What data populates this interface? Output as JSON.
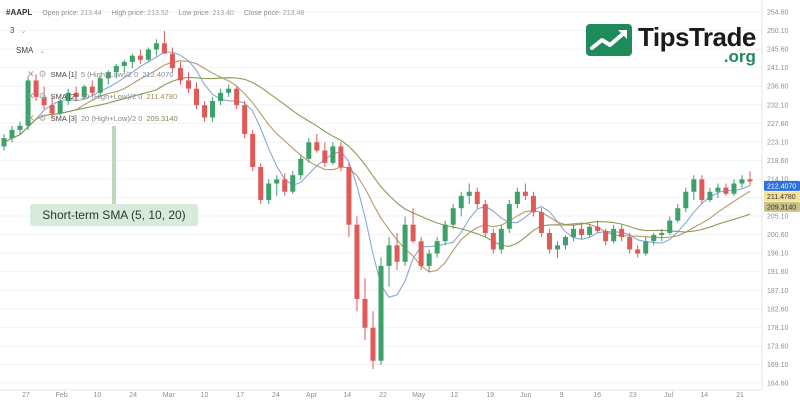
{
  "header": {
    "symbol": "#AAPL",
    "open_label": "Open price:",
    "open_value": "213.44",
    "high_label": "High price:",
    "high_value": "213.52",
    "low_label": "Low price:",
    "low_value": "213.40",
    "close_label": "Close price:",
    "close_value": "213.48"
  },
  "controls": {
    "interval_value": "3",
    "indicator_value": "SMA"
  },
  "sma_legend": [
    {
      "name": "SMA [1]",
      "params": "5 (High+Low)/2 0",
      "value": "212.4070",
      "color": "#8aa7d6"
    },
    {
      "name": "SMA [2]",
      "params": "10 (High+Low)/2 0",
      "value": "211.4780",
      "color": "#b59a6a"
    },
    {
      "name": "SMA [3]",
      "params": "20 (High+Low)/2 0",
      "value": "209.3140",
      "color": "#8a9a5b"
    }
  ],
  "callout": "Short-term SMA (5, 10, 20)",
  "logo": {
    "tips": "TipsTrade",
    "org": ".org"
  },
  "chart_data": {
    "type": "candlestick",
    "y_ticks": [
      "254.60",
      "250.10",
      "245.60",
      "241.10",
      "236.60",
      "232.10",
      "227.60",
      "223.10",
      "218.60",
      "214.10",
      "209.60",
      "205.10",
      "200.60",
      "196.10",
      "191.60",
      "187.10",
      "182.60",
      "178.10",
      "173.60",
      "169.10",
      "164.60"
    ],
    "ylim": [
      164.6,
      254.6
    ],
    "x_labels": [
      "27",
      "Feb",
      "10",
      "24",
      "Mar",
      "10",
      "17",
      "24",
      "Apr",
      "14",
      "22",
      "May",
      "12",
      "19",
      "Jun",
      "9",
      "16",
      "23",
      "Jul",
      "14",
      "21"
    ],
    "price_tags": [
      {
        "value": 212.407,
        "label": "212.4070",
        "bg": "#2f6fe0",
        "fg": "#ffffff"
      },
      {
        "value": 211.478,
        "label": "211.4780",
        "bg": "#f3e39a",
        "fg": "#333333"
      },
      {
        "value": 209.314,
        "label": "209.3140",
        "bg": "#c7c28a",
        "fg": "#333333"
      }
    ],
    "colors": {
      "up": "#3ea06b",
      "down": "#e05a5a",
      "sma5": "#8aa7d6",
      "sma10": "#b59a6a",
      "sma20": "#8a9a5b"
    },
    "candles": [
      [
        222.0,
        225.0,
        221.0,
        224.0
      ],
      [
        224.0,
        227.0,
        223.0,
        226.0
      ],
      [
        226.0,
        228.0,
        225.0,
        227.0
      ],
      [
        227.0,
        239.0,
        226.0,
        238.0
      ],
      [
        238.0,
        239.5,
        233.0,
        234.0
      ],
      [
        234.0,
        236.5,
        231.0,
        232.0
      ],
      [
        232.0,
        234.0,
        229.0,
        230.0
      ],
      [
        230.0,
        233.5,
        229.5,
        233.0
      ],
      [
        233.0,
        236.0,
        232.0,
        235.0
      ],
      [
        235.0,
        236.5,
        233.0,
        234.0
      ],
      [
        234.0,
        237.0,
        233.5,
        236.5
      ],
      [
        236.5,
        238.0,
        234.5,
        235.0
      ],
      [
        235.0,
        239.0,
        234.0,
        238.5
      ],
      [
        238.5,
        240.5,
        237.0,
        240.0
      ],
      [
        240.0,
        242.0,
        238.5,
        241.5
      ],
      [
        241.5,
        243.0,
        240.0,
        242.5
      ],
      [
        242.5,
        244.5,
        241.0,
        244.0
      ],
      [
        244.0,
        245.5,
        242.0,
        243.0
      ],
      [
        243.0,
        246.0,
        242.5,
        245.5
      ],
      [
        245.5,
        248.0,
        244.0,
        247.0
      ],
      [
        247.0,
        250.0,
        245.0,
        244.5
      ],
      [
        244.5,
        246.0,
        240.0,
        241.0
      ],
      [
        241.0,
        242.5,
        237.0,
        238.0
      ],
      [
        238.0,
        240.0,
        235.0,
        236.0
      ],
      [
        236.0,
        237.5,
        231.0,
        232.0
      ],
      [
        232.0,
        233.0,
        228.0,
        229.0
      ],
      [
        229.0,
        234.0,
        228.0,
        233.0
      ],
      [
        233.0,
        236.0,
        232.0,
        235.0
      ],
      [
        235.0,
        237.0,
        234.0,
        236.0
      ],
      [
        236.0,
        236.5,
        231.0,
        232.0
      ],
      [
        232.0,
        233.0,
        224.0,
        225.0
      ],
      [
        225.0,
        226.0,
        216.0,
        217.0
      ],
      [
        217.0,
        218.0,
        208.0,
        209.0
      ],
      [
        209.0,
        214.0,
        208.0,
        213.0
      ],
      [
        213.0,
        215.0,
        210.0,
        214.0
      ],
      [
        214.0,
        215.5,
        210.0,
        211.0
      ],
      [
        211.0,
        216.0,
        210.5,
        215.0
      ],
      [
        215.0,
        220.0,
        214.0,
        219.0
      ],
      [
        219.0,
        224.0,
        218.0,
        223.0
      ],
      [
        223.0,
        225.0,
        220.5,
        221.0
      ],
      [
        221.0,
        223.0,
        217.0,
        218.0
      ],
      [
        218.0,
        223.0,
        217.5,
        222.0
      ],
      [
        222.0,
        223.0,
        216.0,
        217.0
      ],
      [
        217.0,
        218.0,
        200.0,
        203.0
      ],
      [
        203.0,
        205.0,
        182.0,
        185.0
      ],
      [
        185.0,
        190.0,
        175.0,
        178.0
      ],
      [
        178.0,
        182.0,
        168.0,
        170.0
      ],
      [
        170.0,
        195.0,
        169.0,
        193.0
      ],
      [
        193.0,
        200.0,
        188.0,
        198.0
      ],
      [
        198.0,
        201.0,
        192.0,
        194.0
      ],
      [
        194.0,
        205.0,
        193.0,
        203.0
      ],
      [
        203.0,
        207.0,
        198.5,
        199.0
      ],
      [
        199.0,
        200.0,
        192.0,
        193.0
      ],
      [
        193.0,
        197.0,
        191.5,
        196.0
      ],
      [
        196.0,
        200.0,
        195.0,
        199.0
      ],
      [
        199.0,
        204.0,
        198.0,
        203.0
      ],
      [
        203.0,
        208.0,
        202.0,
        207.0
      ],
      [
        207.0,
        211.0,
        205.0,
        210.0
      ],
      [
        210.0,
        213.0,
        208.0,
        211.0
      ],
      [
        211.0,
        212.0,
        207.0,
        208.0
      ],
      [
        208.0,
        209.0,
        200.0,
        201.0
      ],
      [
        201.0,
        202.0,
        196.0,
        197.0
      ],
      [
        197.0,
        203.0,
        196.0,
        202.0
      ],
      [
        202.0,
        209.0,
        201.0,
        208.0
      ],
      [
        208.0,
        212.0,
        207.0,
        211.0
      ],
      [
        211.0,
        213.0,
        209.0,
        210.0
      ],
      [
        210.0,
        211.0,
        205.0,
        206.0
      ],
      [
        206.0,
        207.0,
        200.0,
        201.0
      ],
      [
        201.0,
        202.0,
        196.0,
        197.0
      ],
      [
        197.0,
        199.0,
        195.0,
        198.0
      ],
      [
        198.0,
        200.5,
        197.0,
        200.0
      ],
      [
        200.0,
        203.0,
        199.0,
        202.0
      ],
      [
        202.0,
        203.5,
        199.5,
        200.5
      ],
      [
        200.5,
        203.0,
        200.0,
        202.5
      ],
      [
        202.5,
        204.0,
        201.0,
        201.5
      ],
      [
        201.5,
        202.0,
        198.0,
        199.0
      ],
      [
        199.0,
        203.0,
        198.5,
        202.0
      ],
      [
        202.0,
        203.0,
        199.0,
        200.0
      ],
      [
        200.0,
        201.0,
        196.0,
        197.0
      ],
      [
        197.0,
        198.0,
        195.0,
        196.0
      ],
      [
        196.0,
        200.0,
        195.5,
        199.0
      ],
      [
        199.0,
        201.0,
        198.0,
        200.5
      ],
      [
        200.5,
        202.0,
        199.0,
        201.0
      ],
      [
        201.0,
        205.0,
        200.5,
        204.0
      ],
      [
        204.0,
        208.0,
        203.5,
        207.0
      ],
      [
        207.0,
        212.0,
        206.0,
        211.0
      ],
      [
        211.0,
        215.0,
        209.0,
        214.0
      ],
      [
        214.0,
        215.0,
        208.0,
        209.0
      ],
      [
        209.0,
        212.0,
        208.5,
        211.0
      ],
      [
        211.0,
        213.0,
        209.5,
        212.0
      ],
      [
        212.0,
        213.0,
        210.0,
        210.5
      ],
      [
        210.5,
        214.0,
        210.0,
        213.0
      ],
      [
        213.0,
        215.0,
        212.0,
        214.0
      ],
      [
        214.0,
        216.0,
        212.5,
        213.5
      ]
    ]
  }
}
